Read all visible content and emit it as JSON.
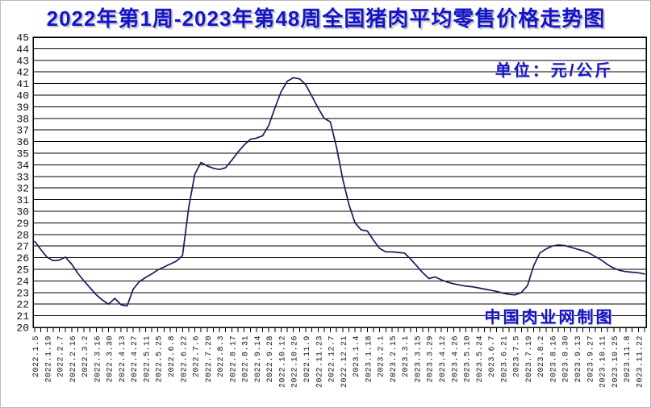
{
  "title": "2022年第1周-2023年第48周全国猪肉平均零售价格走势图",
  "unit_label": "单位：元/公斤",
  "watermark": "中国肉业网制图",
  "colors": {
    "accent_blue": "#1414cc",
    "line": "#1b1b5a",
    "grid": "#000000",
    "background": "#ffffff"
  },
  "chart_data": {
    "type": "line",
    "title": "2022年第1周-2023年第48周全国猪肉平均零售价格走势图",
    "xlabel": "",
    "ylabel": "元/公斤",
    "ylim": [
      20,
      45
    ],
    "y_tick_step": 1,
    "grid": "horizontal",
    "legend": "none",
    "label_every_n_points": 2,
    "x_labels": [
      "2022.1.5",
      "2022.1.19",
      "2022.2.7",
      "2022.2.16",
      "2022.3.2",
      "2022.3.16",
      "2022.3.30",
      "2022.4.13",
      "2022.4.27",
      "2022.5.11",
      "2022.5.25",
      "2022.6.8",
      "2022.6.22",
      "2022.7.6",
      "2022.7.20",
      "2022.8.3",
      "2022.8.17",
      "2022.8.31",
      "2022.9.14",
      "2022.9.28",
      "2022.10.12",
      "2022.10.26",
      "2022.11.9",
      "2022.11.23",
      "2022.12.7",
      "2022.12.21",
      "2023.1.4",
      "2023.1.18",
      "2023.2.1",
      "2023.2.15",
      "2023.3.1",
      "2023.3.15",
      "2023.3.29",
      "2023.4.12",
      "2023.4.26",
      "2023.5.10",
      "2023.5.24",
      "2023.6.7",
      "2023.6.21",
      "2023.7.5",
      "2023.7.19",
      "2023.8.2",
      "2023.8.16",
      "2023.8.30",
      "2023.9.13",
      "2023.9.27",
      "2023.10.11",
      "2023.10.25",
      "2023.11.8",
      "2023.11.22"
    ],
    "series": [
      {
        "name": "全国猪肉平均零售价格",
        "values": [
          27.4,
          26.7,
          26.05,
          25.75,
          25.8,
          26.05,
          25.45,
          24.65,
          24.0,
          23.4,
          22.8,
          22.35,
          22.0,
          22.5,
          21.95,
          21.85,
          23.3,
          23.95,
          24.3,
          24.6,
          24.95,
          25.2,
          25.45,
          25.7,
          26.2,
          30.3,
          33.2,
          34.2,
          33.9,
          33.7,
          33.6,
          33.75,
          34.4,
          35.1,
          35.7,
          36.2,
          36.3,
          36.5,
          37.4,
          38.9,
          40.3,
          41.2,
          41.5,
          41.4,
          40.9,
          39.9,
          38.9,
          38.0,
          37.7,
          35.5,
          32.8,
          30.6,
          29.0,
          28.4,
          28.3,
          27.5,
          26.8,
          26.5,
          26.5,
          26.45,
          26.4,
          25.9,
          25.3,
          24.7,
          24.2,
          24.35,
          24.1,
          23.9,
          23.75,
          23.65,
          23.55,
          23.5,
          23.4,
          23.3,
          23.2,
          23.1,
          22.95,
          22.85,
          22.8,
          23.0,
          23.6,
          25.3,
          26.4,
          26.75,
          27.0,
          27.1,
          27.05,
          26.9,
          26.75,
          26.6,
          26.4,
          26.1,
          25.8,
          25.4,
          25.1,
          24.9,
          24.8,
          24.75,
          24.7,
          24.6
        ]
      }
    ]
  }
}
